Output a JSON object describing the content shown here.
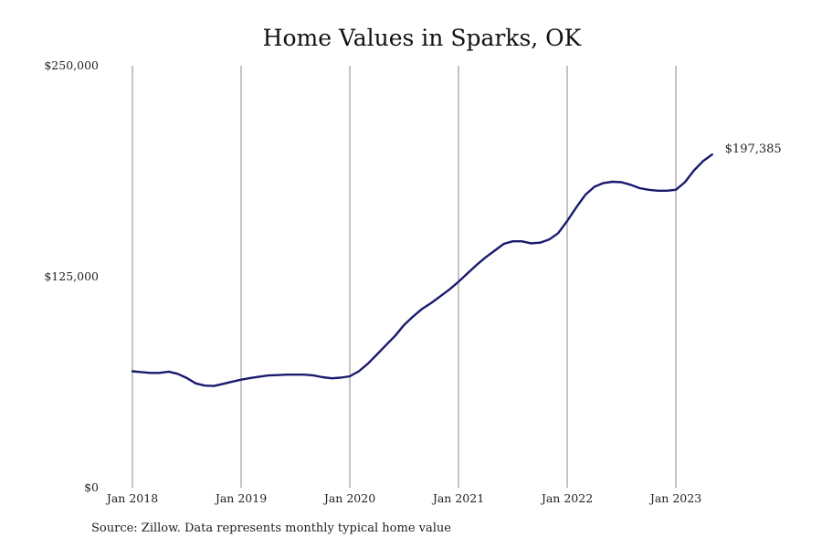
{
  "chart_data": {
    "type": "line",
    "title": "Home Values in Sparks, OK",
    "xlabel": "",
    "ylabel": "",
    "x_ticks": [
      "Jan 2018",
      "Jan 2019",
      "Jan 2020",
      "Jan 2021",
      "Jan 2022",
      "Jan 2023"
    ],
    "y_ticks": [
      "$0",
      "$125,000",
      "$250,000"
    ],
    "ylim": [
      0,
      250000
    ],
    "xlim": [
      "2018-01",
      "2023-05"
    ],
    "grid": "vertical",
    "line_color": "#1a1a6e",
    "end_label": "$197,385",
    "series": [
      {
        "x": [
          "2018-01",
          "2018-02",
          "2018-03",
          "2018-04",
          "2018-05",
          "2018-06",
          "2018-07",
          "2018-08",
          "2018-09",
          "2018-10",
          "2018-11",
          "2018-12",
          "2019-01",
          "2019-02",
          "2019-03",
          "2019-04",
          "2019-05",
          "2019-06",
          "2019-07",
          "2019-08",
          "2019-09",
          "2019-10",
          "2019-11",
          "2019-12",
          "2020-01",
          "2020-02",
          "2020-03",
          "2020-04",
          "2020-05",
          "2020-06",
          "2020-07",
          "2020-08",
          "2020-09",
          "2020-10",
          "2020-11",
          "2020-12",
          "2021-01",
          "2021-02",
          "2021-03",
          "2021-04",
          "2021-05",
          "2021-06",
          "2021-07",
          "2021-08",
          "2021-09",
          "2021-10",
          "2021-11",
          "2021-12",
          "2022-01",
          "2022-02",
          "2022-03",
          "2022-04",
          "2022-05",
          "2022-06",
          "2022-07",
          "2022-08",
          "2022-09",
          "2022-10",
          "2022-11",
          "2022-12",
          "2023-01",
          "2023-02",
          "2023-03",
          "2023-04",
          "2023-05"
        ],
        "values": [
          69000,
          68500,
          68000,
          68000,
          68800,
          67500,
          65000,
          61800,
          60500,
          60300,
          61500,
          62800,
          64000,
          65000,
          65800,
          66500,
          66700,
          67000,
          67000,
          67000,
          66500,
          65500,
          64800,
          65200,
          66000,
          69000,
          73500,
          79000,
          84500,
          90000,
          96500,
          101500,
          106000,
          109500,
          113500,
          117500,
          122000,
          127000,
          132000,
          136500,
          140500,
          144500,
          146000,
          146000,
          144800,
          145200,
          147000,
          150800,
          158000,
          166000,
          173500,
          178300,
          180500,
          181300,
          181000,
          179500,
          177500,
          176500,
          176000,
          176000,
          176500,
          181000,
          188000,
          193500,
          197385
        ]
      }
    ]
  },
  "source": "Source: Zillow. Data represents monthly typical home value"
}
